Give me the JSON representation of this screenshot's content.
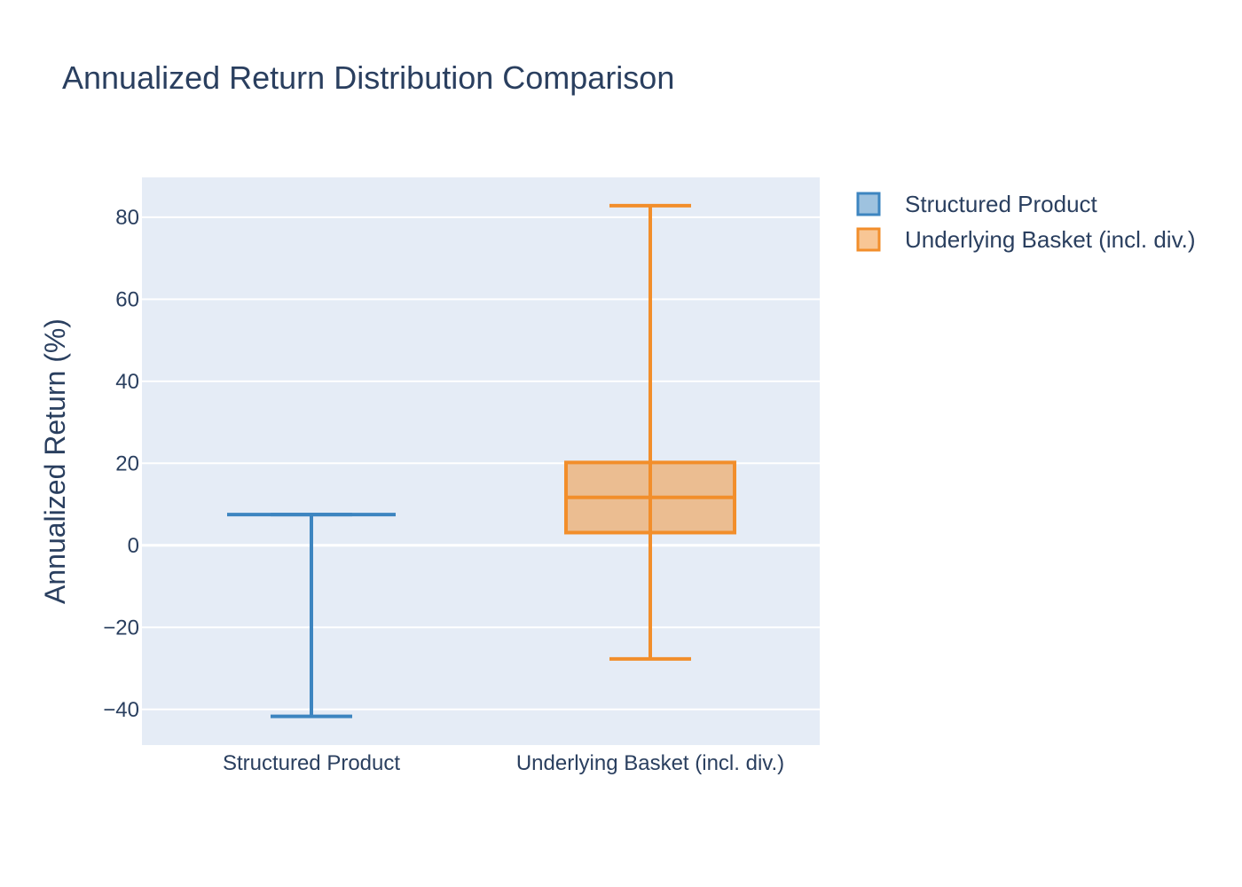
{
  "chart_data": {
    "type": "box",
    "title": "Annualized Return Distribution Comparison",
    "xlabel": "",
    "ylabel": "Annualized Return (%)",
    "ylim": [
      -48.7,
      89.7
    ],
    "yticks": [
      -40,
      -20,
      0,
      20,
      40,
      60,
      80
    ],
    "ytick_labels": [
      "−40",
      "−20",
      "0",
      "20",
      "40",
      "60",
      "80"
    ],
    "grid": true,
    "legend_position": "top-right",
    "categories": [
      "Structured Product",
      "Underlying Basket (incl. div.)"
    ],
    "series": [
      {
        "name": "Structured Product",
        "color": "#3d85c0",
        "fill": "rgba(61,133,192,0.5)",
        "min": -41.7,
        "q1": 7.5,
        "median": 7.5,
        "q3": 7.5,
        "max": 7.5
      },
      {
        "name": "Underlying Basket (incl. div.)",
        "color": "#f28e2b",
        "fill": "rgba(242,142,43,0.5)",
        "min": -27.7,
        "q1": 3.1,
        "median": 11.7,
        "q3": 20.2,
        "max": 82.8
      }
    ]
  }
}
